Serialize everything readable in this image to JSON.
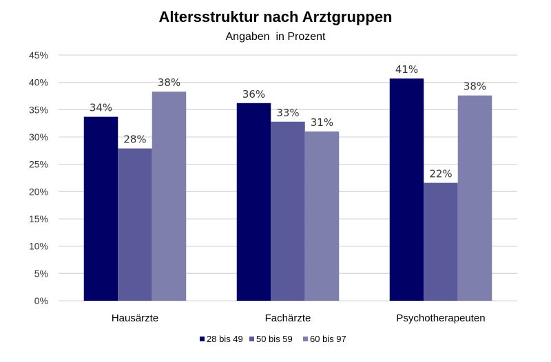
{
  "chart_data": {
    "type": "bar",
    "title": "Altersstruktur nach Arztgruppen",
    "subtitle": "Angaben  in Prozent",
    "xlabel": "",
    "ylabel": "",
    "ylim": [
      0,
      45
    ],
    "yticks": [
      0,
      5,
      10,
      15,
      20,
      25,
      30,
      35,
      40,
      45
    ],
    "ytick_labels": [
      "0%",
      "5%",
      "10%",
      "15%",
      "20%",
      "25%",
      "30%",
      "35%",
      "40%",
      "45%"
    ],
    "grid": true,
    "legend_position": "bottom",
    "categories": [
      "Hausärzte",
      "Fachärzte",
      "Psychotherapeuten"
    ],
    "series": [
      {
        "name": "28 bis 49",
        "color": "#000066",
        "values": [
          33.7,
          36.2,
          40.7
        ],
        "labels": [
          "34%",
          "36%",
          "41%"
        ]
      },
      {
        "name": "50 bis 59",
        "color": "#5a5a9a",
        "values": [
          27.9,
          32.8,
          21.6
        ],
        "labels": [
          "28%",
          "33%",
          "22%"
        ]
      },
      {
        "name": "60 bis 97",
        "color": "#7f7fae",
        "values": [
          38.3,
          31.0,
          37.6
        ],
        "labels": [
          "38%",
          "31%",
          "38%"
        ]
      }
    ]
  }
}
